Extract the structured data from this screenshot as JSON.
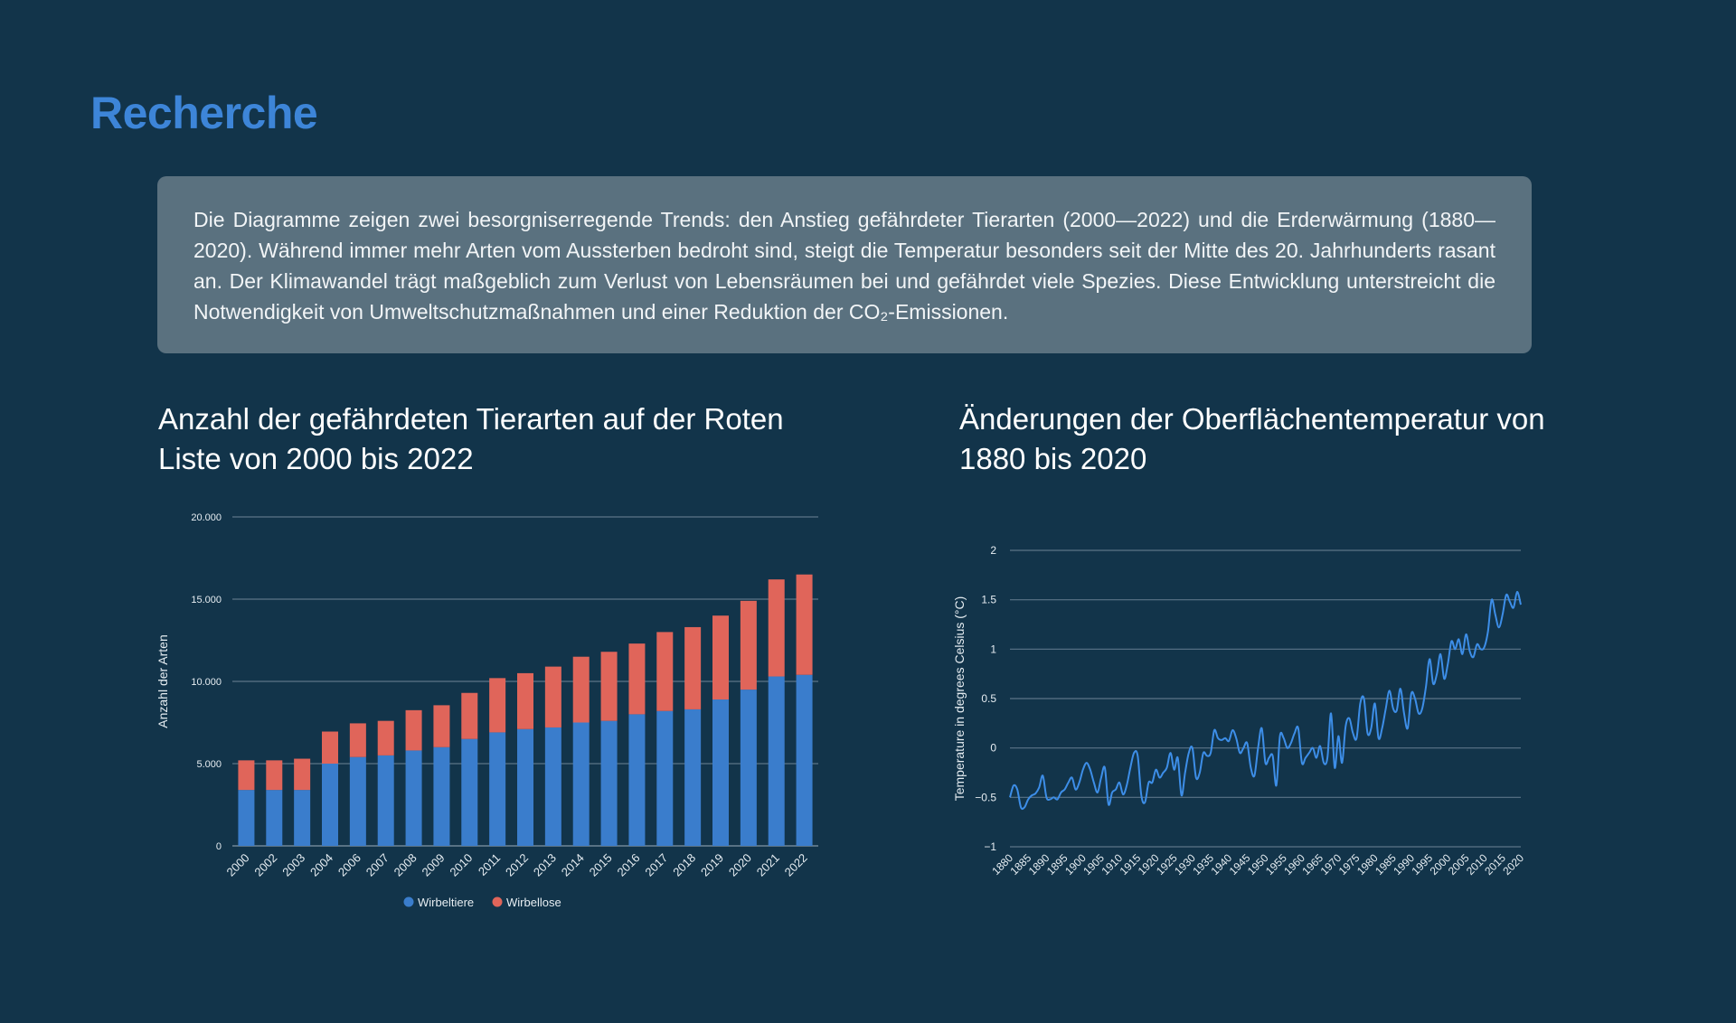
{
  "page": {
    "title": "Recherche",
    "summary": "Die Diagramme zeigen zwei besorgniserregende Trends: den Anstieg gefährdeter Tierarten (2000—2022) und die Erderwärmung (1880—2020). Während immer mehr Arten vom Aussterben bedroht sind, steigt die Temperatur besonders seit der Mitte des 20. Jahrhunderts rasant an. Der Klimawandel trägt maßgeblich zum Verlust von Lebensräumen bei und gefährdet viele Spezies. Diese Entwicklung unterstreicht die Notwendigkeit von Umweltschutzmaßnahmen und einer Reduktion der CO₂-Emissionen."
  },
  "colors": {
    "background": "#12344a",
    "title": "#3d85d8",
    "summary_box": "#5a717f",
    "vertebrates": "#3a7dcc",
    "invertebrates": "#e0655a",
    "temperature_line": "#3d8ee8",
    "grid": "#5c7588"
  },
  "chart_data": [
    {
      "type": "bar",
      "stacked": true,
      "title": "Anzahl der gefährdeten Tierarten auf der Roten Liste von 2000 bis 2022",
      "xlabel": "",
      "ylabel": "Anzahl der Arten",
      "ylim": [
        0,
        20000
      ],
      "yticks": [
        "0",
        "5.000",
        "10.000",
        "15.000",
        "20.000"
      ],
      "ytick_values": [
        0,
        5000,
        10000,
        15000,
        20000
      ],
      "grid": true,
      "legend_position": "bottom",
      "categories": [
        "2000",
        "2002",
        "2003",
        "2004",
        "2006",
        "2007",
        "2008",
        "2009",
        "2010",
        "2011",
        "2012",
        "2013",
        "2014",
        "2015",
        "2016",
        "2017",
        "2018",
        "2019",
        "2020",
        "2021",
        "2022"
      ],
      "series": [
        {
          "name": "Wirbeltiere",
          "color": "#3a7dcc",
          "values": [
            3400,
            3400,
            3400,
            5000,
            5400,
            5500,
            5800,
            6000,
            6500,
            6900,
            7100,
            7200,
            7500,
            7600,
            8000,
            8200,
            8300,
            8900,
            9500,
            10300,
            10400
          ]
        },
        {
          "name": "Wirbellose",
          "color": "#e0655a",
          "values": [
            1800,
            1800,
            1900,
            1950,
            2050,
            2100,
            2450,
            2550,
            2800,
            3300,
            3400,
            3700,
            4000,
            4200,
            4300,
            4800,
            5000,
            5100,
            5400,
            5900,
            6100
          ]
        }
      ]
    },
    {
      "type": "line",
      "title": "Änderungen der Oberflächentemperatur von 1880 bis 2020",
      "xlabel": "",
      "ylabel": "Temperature in degrees Celsius (°C)",
      "ylim": [
        -1,
        2
      ],
      "yticks": [
        "−1",
        "−0.5",
        "0",
        "0.5",
        "1",
        "1.5",
        "2"
      ],
      "ytick_values": [
        -1,
        -0.5,
        0,
        0.5,
        1,
        1.5,
        2
      ],
      "xlim": [
        1880,
        2020
      ],
      "xticks": [
        1880,
        1885,
        1890,
        1895,
        1900,
        1905,
        1910,
        1915,
        1920,
        1925,
        1930,
        1935,
        1940,
        1945,
        1950,
        1955,
        1960,
        1965,
        1970,
        1975,
        1980,
        1985,
        1990,
        1995,
        2000,
        2005,
        2010,
        2015,
        2020
      ],
      "grid": true,
      "series": [
        {
          "color": "#3d8ee8",
          "x": [
            1880,
            1881,
            1882,
            1883,
            1884,
            1885,
            1886,
            1887,
            1888,
            1889,
            1890,
            1891,
            1892,
            1893,
            1894,
            1895,
            1896,
            1897,
            1898,
            1899,
            1900,
            1901,
            1902,
            1903,
            1904,
            1905,
            1906,
            1907,
            1908,
            1909,
            1910,
            1911,
            1912,
            1913,
            1914,
            1915,
            1916,
            1917,
            1918,
            1919,
            1920,
            1921,
            1922,
            1923,
            1924,
            1925,
            1926,
            1927,
            1928,
            1929,
            1930,
            1931,
            1932,
            1933,
            1934,
            1935,
            1936,
            1937,
            1938,
            1939,
            1940,
            1941,
            1942,
            1943,
            1944,
            1945,
            1946,
            1947,
            1948,
            1949,
            1950,
            1951,
            1952,
            1953,
            1954,
            1955,
            1956,
            1957,
            1958,
            1959,
            1960,
            1961,
            1962,
            1963,
            1964,
            1965,
            1966,
            1967,
            1968,
            1969,
            1970,
            1971,
            1972,
            1973,
            1974,
            1975,
            1976,
            1977,
            1978,
            1979,
            1980,
            1981,
            1982,
            1983,
            1984,
            1985,
            1986,
            1987,
            1988,
            1989,
            1990,
            1991,
            1992,
            1993,
            1994,
            1995,
            1996,
            1997,
            1998,
            1999,
            2000,
            2001,
            2002,
            2003,
            2004,
            2005,
            2006,
            2007,
            2008,
            2009,
            2010,
            2011,
            2012,
            2013,
            2014,
            2015,
            2016,
            2017,
            2018,
            2019,
            2020
          ],
          "values": [
            -0.5,
            -0.38,
            -0.42,
            -0.6,
            -0.6,
            -0.52,
            -0.48,
            -0.46,
            -0.4,
            -0.28,
            -0.5,
            -0.52,
            -0.5,
            -0.52,
            -0.45,
            -0.42,
            -0.35,
            -0.3,
            -0.42,
            -0.35,
            -0.22,
            -0.15,
            -0.22,
            -0.35,
            -0.45,
            -0.3,
            -0.2,
            -0.57,
            -0.45,
            -0.42,
            -0.35,
            -0.47,
            -0.38,
            -0.2,
            -0.05,
            -0.08,
            -0.48,
            -0.55,
            -0.35,
            -0.35,
            -0.22,
            -0.3,
            -0.25,
            -0.2,
            -0.05,
            -0.22,
            -0.1,
            -0.48,
            -0.25,
            -0.05,
            0.0,
            -0.3,
            -0.25,
            -0.05,
            -0.08,
            -0.05,
            0.18,
            0.1,
            0.08,
            0.1,
            0.07,
            0.18,
            0.1,
            -0.05,
            0.0,
            0.05,
            -0.2,
            -0.28,
            0.0,
            0.2,
            -0.15,
            -0.1,
            -0.08,
            -0.38,
            0.12,
            0.1,
            0.0,
            0.05,
            0.15,
            0.2,
            -0.15,
            -0.1,
            -0.05,
            0.0,
            -0.1,
            0.02,
            -0.15,
            -0.1,
            0.35,
            -0.2,
            0.12,
            -0.15,
            0.22,
            0.3,
            0.15,
            0.1,
            0.45,
            0.5,
            0.15,
            0.2,
            0.45,
            0.1,
            0.2,
            0.4,
            0.58,
            0.4,
            0.38,
            0.6,
            0.35,
            0.2,
            0.55,
            0.5,
            0.35,
            0.4,
            0.62,
            0.9,
            0.65,
            0.75,
            0.95,
            0.7,
            0.85,
            1.08,
            1.0,
            1.1,
            0.95,
            1.15,
            0.98,
            0.92,
            1.05,
            1.0,
            1.02,
            1.18,
            1.5,
            1.35,
            1.22,
            1.35,
            1.55,
            1.48,
            1.42,
            1.58,
            1.45
          ]
        }
      ]
    }
  ]
}
